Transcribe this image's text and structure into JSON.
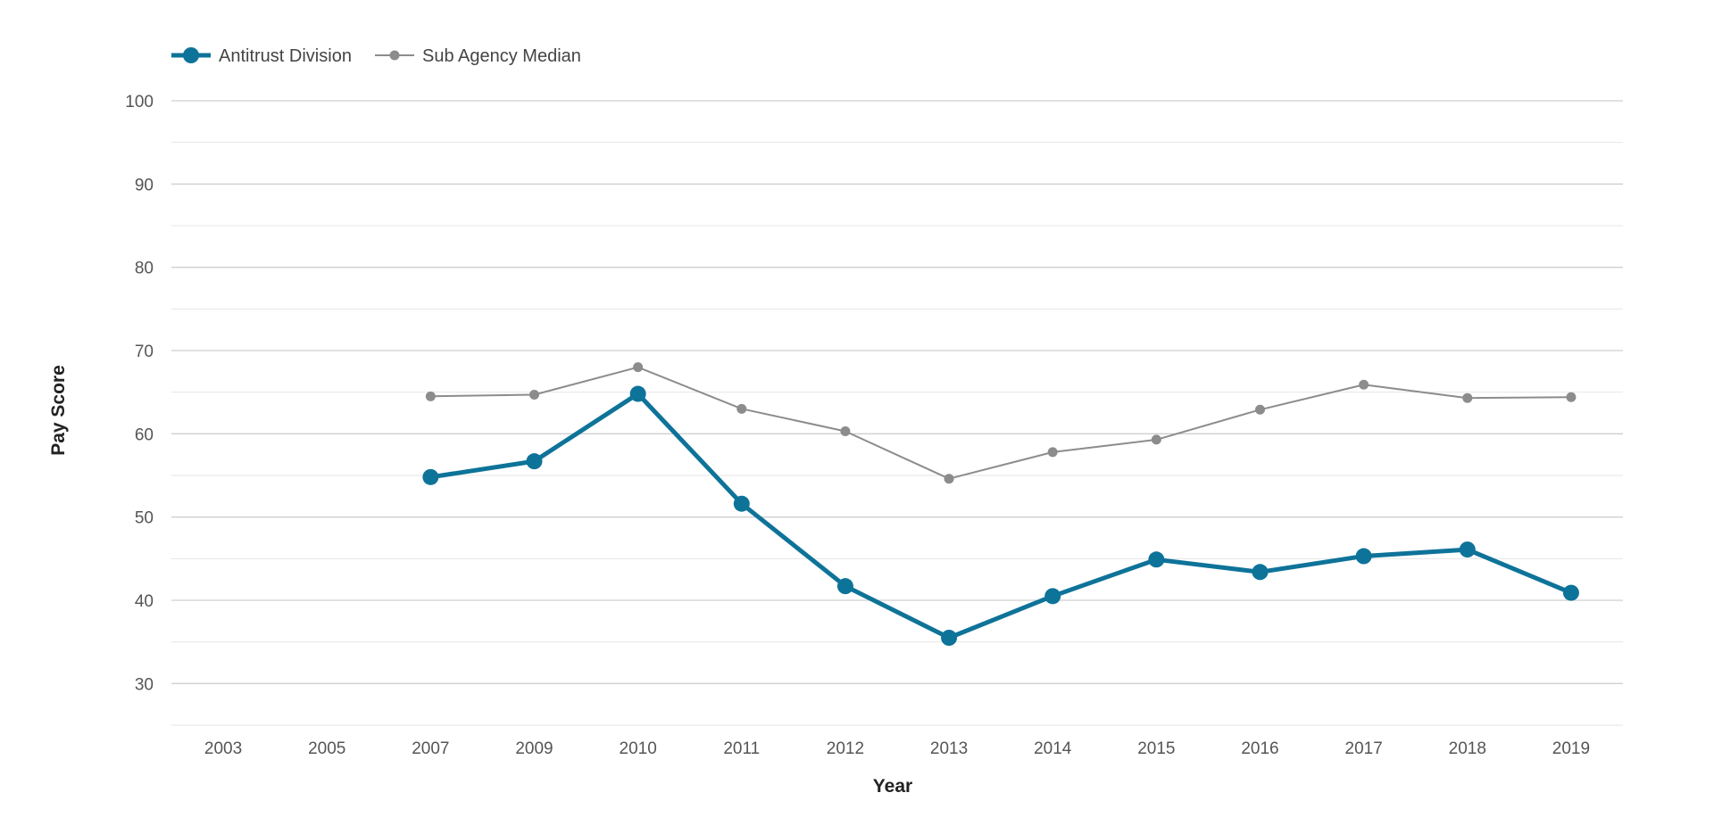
{
  "chart_data": {
    "type": "line",
    "categories": [
      "2003",
      "2005",
      "2007",
      "2009",
      "2010",
      "2011",
      "2012",
      "2013",
      "2014",
      "2015",
      "2016",
      "2017",
      "2018",
      "2019"
    ],
    "series": [
      {
        "name": "Antitrust Division",
        "color": "#0e7399",
        "values": [
          null,
          null,
          54.8,
          56.7,
          64.8,
          51.6,
          41.7,
          35.5,
          40.5,
          44.9,
          43.4,
          45.3,
          46.1,
          40.9
        ]
      },
      {
        "name": "Sub Agency Median",
        "color": "#8c8c8c",
        "values": [
          null,
          null,
          64.5,
          64.7,
          68.0,
          63.0,
          60.3,
          54.6,
          57.8,
          59.3,
          62.9,
          65.9,
          64.3,
          64.4
        ]
      }
    ],
    "xlabel": "Year",
    "ylabel": "Pay Score",
    "ylim": [
      25,
      100
    ],
    "yticks": [
      30,
      40,
      50,
      60,
      70,
      80,
      90,
      100
    ],
    "grid": true,
    "legend_position": "top-left"
  }
}
